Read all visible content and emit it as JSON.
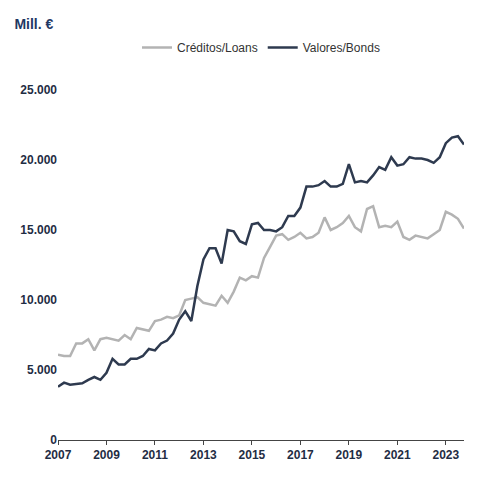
{
  "chart_data": {
    "type": "line",
    "title": "Mill. €",
    "x": [
      2007,
      2007.25,
      2007.5,
      2007.75,
      2008,
      2008.25,
      2008.5,
      2008.75,
      2009,
      2009.25,
      2009.5,
      2009.75,
      2010,
      2010.25,
      2010.5,
      2010.75,
      2011,
      2011.25,
      2011.5,
      2011.75,
      2012,
      2012.25,
      2012.5,
      2012.75,
      2013,
      2013.25,
      2013.5,
      2013.75,
      2014,
      2014.25,
      2014.5,
      2014.75,
      2015,
      2015.25,
      2015.5,
      2015.75,
      2016,
      2016.25,
      2016.5,
      2016.75,
      2017,
      2017.25,
      2017.5,
      2017.75,
      2018,
      2018.25,
      2018.5,
      2018.75,
      2019,
      2019.25,
      2019.5,
      2019.75,
      2020,
      2020.25,
      2020.5,
      2020.75,
      2021,
      2021.25,
      2021.5,
      2021.75,
      2022,
      2022.25,
      2022.5,
      2022.75,
      2023,
      2023.25,
      2023.5,
      2023.75
    ],
    "series": [
      {
        "name": "Créditos/Loans",
        "color": "#b3b3b3",
        "values": [
          6100,
          6000,
          6000,
          6900,
          6900,
          7200,
          6400,
          7200,
          7300,
          7200,
          7100,
          7500,
          7200,
          8000,
          7900,
          7800,
          8500,
          8600,
          8800,
          8700,
          8900,
          10000,
          10100,
          10200,
          9800,
          9700,
          9600,
          10300,
          9800,
          10600,
          11600,
          11400,
          11700,
          11600,
          13000,
          13800,
          14600,
          14700,
          14300,
          14500,
          14800,
          14400,
          14500,
          14800,
          15900,
          15000,
          15200,
          15500,
          16000,
          15200,
          14900,
          16500,
          16700,
          15200,
          15300,
          15200,
          15600,
          14500,
          14300,
          14600,
          14500,
          14400,
          14700,
          15000,
          16300,
          16100,
          15800,
          15100
        ]
      },
      {
        "name": "Valores/Bonds",
        "color": "#2e3a4f",
        "values": [
          3800,
          4100,
          3950,
          4000,
          4050,
          4300,
          4500,
          4300,
          4800,
          5800,
          5400,
          5400,
          5800,
          5800,
          6000,
          6500,
          6400,
          6900,
          7100,
          7600,
          8600,
          9200,
          8500,
          11000,
          12900,
          13700,
          13700,
          12600,
          15000,
          14900,
          14200,
          14000,
          15400,
          15500,
          15000,
          15000,
          14900,
          15200,
          16000,
          16000,
          16600,
          18100,
          18100,
          18200,
          18500,
          18100,
          18100,
          18300,
          19700,
          18400,
          18500,
          18400,
          18900,
          19500,
          19300,
          20200,
          19600,
          19700,
          20200,
          20100,
          20100,
          20000,
          19800,
          20200,
          21200,
          21600,
          21700,
          21100
        ]
      }
    ],
    "xlim": [
      2007,
      2023.75
    ],
    "xticks": [
      2007,
      2009,
      2011,
      2013,
      2015,
      2017,
      2019,
      2021,
      2023
    ],
    "ylim": [
      0,
      25000
    ],
    "yticks": [
      0,
      {
        "value": 5000,
        "label": "5.000"
      },
      {
        "value": 10000,
        "label": "10.000"
      },
      {
        "value": 15000,
        "label": "15.000"
      },
      {
        "value": 20000,
        "label": "20.000"
      },
      {
        "value": 25000,
        "label": "25.000"
      }
    ],
    "grid": false,
    "legend": "top"
  }
}
